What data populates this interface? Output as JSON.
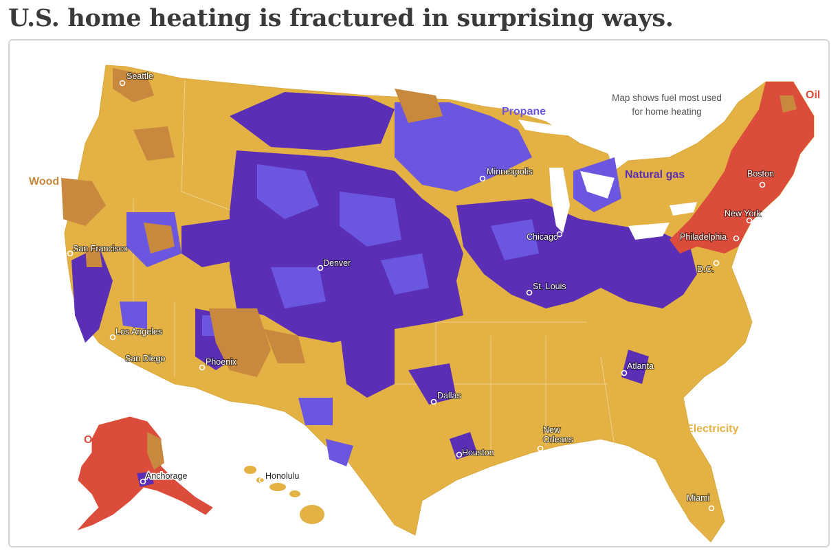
{
  "headline": "U.S. home heating is fractured in surprising ways.",
  "note": {
    "line1": "Map shows fuel most used",
    "line2": "for home heating"
  },
  "colors": {
    "electricity": "#e3b144",
    "propane": "#6b56e0",
    "natural_gas": "#5a2fb5",
    "wood": "#c8893f",
    "oil": "#dc4c3a",
    "border": "#ffffff"
  },
  "fuel_labels": {
    "propane": "Propane",
    "natural_gas": "Natural gas",
    "oil_northeast": "Oil",
    "oil_alaska": "Oil",
    "wood": "Wood",
    "electricity": "Electricity"
  },
  "cities": {
    "seattle": "Seattle",
    "minneapolis": "Minneapolis",
    "boston": "Boston",
    "new_york": "New York",
    "chicago": "Chicago",
    "philadelphia": "Philadelphia",
    "dc": "D.C.",
    "san_francisco": "San Francisco",
    "denver": "Denver",
    "st_louis": "St. Louis",
    "los_angeles": "Los Angeles",
    "san_diego": "San Diego",
    "phoenix": "Phoenix",
    "atlanta": "Atlanta",
    "dallas": "Dallas",
    "new_orleans_1": "New",
    "new_orleans_2": "Orleans",
    "houston": "Houston",
    "anchorage": "Anchorage",
    "honolulu": "Honolulu",
    "miami": "Miami"
  }
}
